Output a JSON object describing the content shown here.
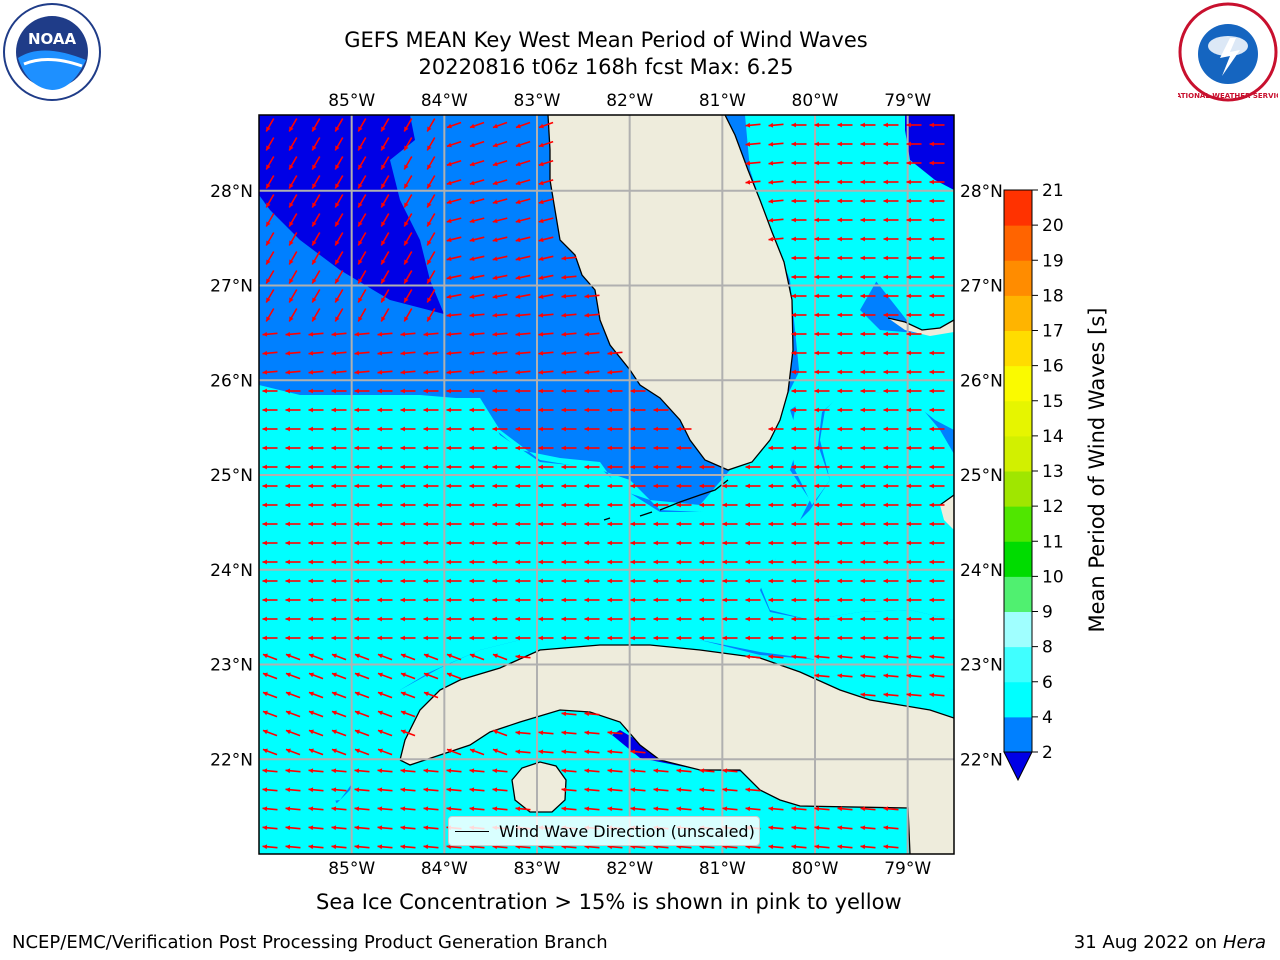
{
  "title": {
    "line1": "GEFS MEAN Key West Mean Period of Wind Waves",
    "line2": "20220816 t06z 168h fcst   Max: 6.25"
  },
  "logos": {
    "left": {
      "icon": "noaa-logo",
      "text": "NOAA"
    },
    "right": {
      "icon": "nws-logo",
      "text": "NATIONAL WEATHER SERVICE"
    }
  },
  "map": {
    "lon_labels": [
      "85°W",
      "84°W",
      "83°W",
      "82°W",
      "81°W",
      "80°W",
      "79°W"
    ],
    "lat_labels": [
      "28°N",
      "27°N",
      "26°N",
      "25°N",
      "24°N",
      "23°N",
      "22°N"
    ],
    "lon_range": [
      -86.0,
      -78.5
    ],
    "lat_range": [
      21.0,
      28.8
    ],
    "colors": {
      "land": "#eeecdc",
      "band_2_4": "#0080ff",
      "band_4_6": "#00ffff",
      "below_2": "#0000e6",
      "arrows": "#ff0000",
      "gridlines": "#b0b0b0"
    }
  },
  "legend": {
    "label": "Wind Wave Direction (unscaled)"
  },
  "colorbar": {
    "title": "Mean Period of Wind Waves [s]",
    "ticks": [
      "2",
      "4",
      "6",
      "8",
      "9",
      "10",
      "11",
      "12",
      "13",
      "14",
      "15",
      "16",
      "17",
      "18",
      "19",
      "20",
      "21"
    ],
    "colors": [
      "#0080ff",
      "#00ffff",
      "#40ffff",
      "#a0ffff",
      "#50f070",
      "#00dc00",
      "#50e600",
      "#a0e600",
      "#d2f000",
      "#e6f500",
      "#fafa00",
      "#ffdc00",
      "#ffb400",
      "#ff8c00",
      "#ff6400",
      "#ff3200",
      "#ff0000"
    ]
  },
  "notes": {
    "ice": "Sea Ice Concentration > 15% is shown in pink to yellow",
    "credit": "NCEP/EMC/Verification Post Processing Product Generation Branch",
    "date": "31 Aug 2022 on",
    "host": "Hera"
  }
}
